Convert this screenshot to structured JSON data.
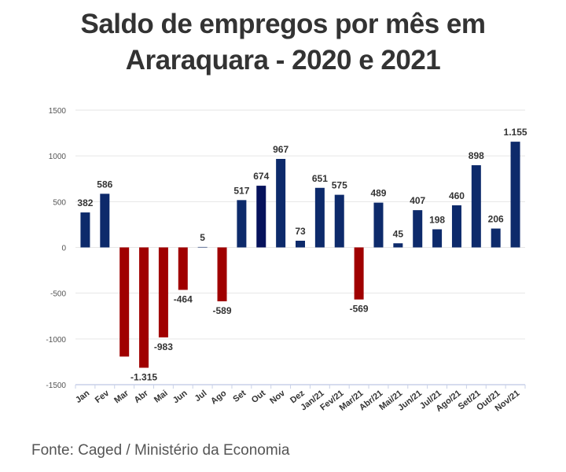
{
  "title_lines": [
    "Saldo de empregos por mês em",
    "Araraquara - 2020 e 2021"
  ],
  "source": "Fonte: Caged / Ministério da Economia",
  "colors": {
    "positive": "#0d2a6b",
    "highlight": "#06125c",
    "negative": "#a00000",
    "grid": "#e6e6e6",
    "axis": "#c9d1e8",
    "text": "#333333"
  },
  "chart_data": {
    "type": "bar",
    "categories": [
      "Jan",
      "Fev",
      "Mar",
      "Abr",
      "Mai",
      "Jun",
      "Jul",
      "Ago",
      "Set",
      "Out",
      "Nov",
      "Dez",
      "Jan/21",
      "Fev/21",
      "Mar/21",
      "Abr/21",
      "Mai/21",
      "Jun/21",
      "Jul/21",
      "Ago/21",
      "Set/21",
      "Out/21",
      "Nov/21"
    ],
    "values": [
      382,
      586,
      -1193,
      -1315,
      -983,
      -464,
      5,
      -589,
      517,
      674,
      967,
      73,
      651,
      575,
      -569,
      489,
      45,
      407,
      198,
      460,
      898,
      206,
      1155
    ],
    "data_labels": [
      "382",
      "586",
      "",
      "-1.315",
      "-983",
      "-464",
      "5",
      "-589",
      "517",
      "674",
      "967",
      "73",
      "651",
      "575",
      "-569",
      "489",
      "45",
      "407",
      "198",
      "460",
      "898",
      "206",
      "1.155"
    ],
    "yticks": [
      "1500",
      "1000",
      "500",
      "0",
      "-500",
      "-1000",
      "-1500"
    ],
    "ylim": [
      -1500,
      1500
    ],
    "grid": true,
    "legend": "none",
    "xlabel": "",
    "ylabel": ""
  }
}
